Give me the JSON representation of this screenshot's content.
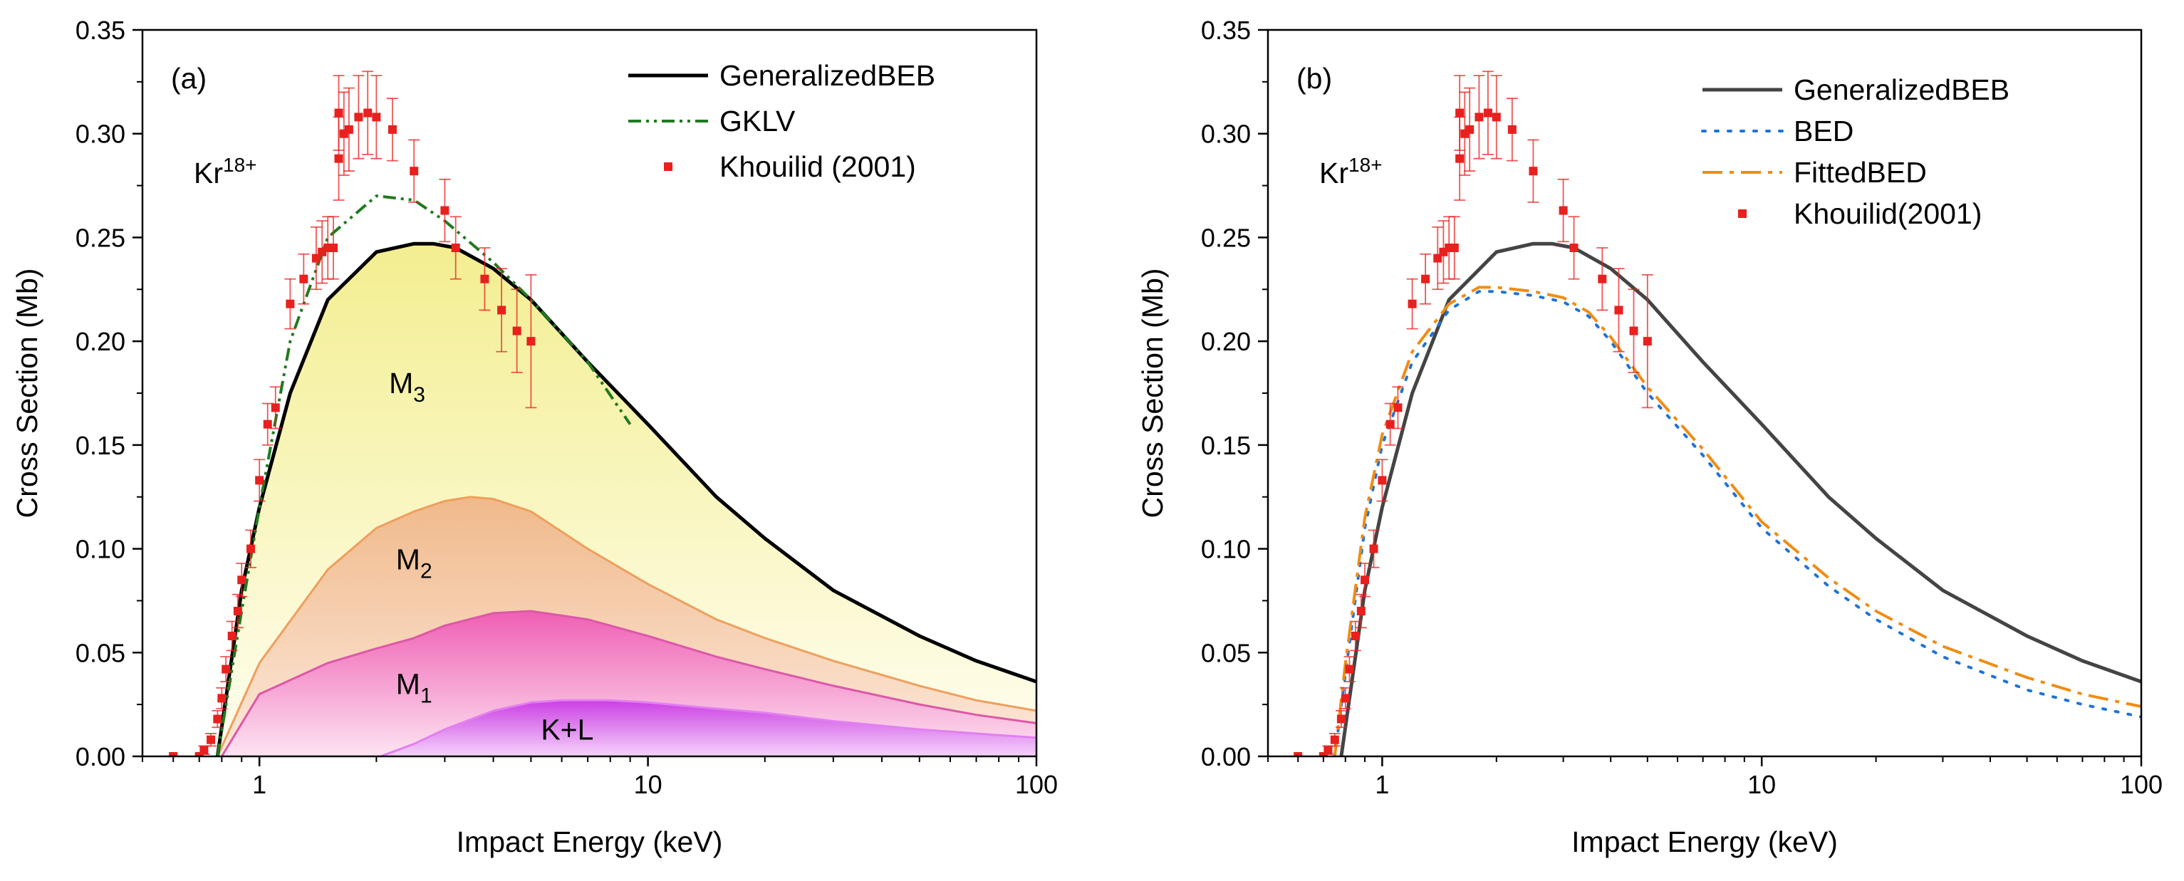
{
  "chart_data": [
    {
      "type": "line",
      "panel_label": "(a)",
      "ion_label": {
        "base": "Kr",
        "sup": "18+"
      },
      "xlabel": "Impact Energy (keV)",
      "ylabel": "Cross Section (Mb)",
      "xscale": "log",
      "xlim": [
        0.5,
        100
      ],
      "ylim": [
        0,
        0.35
      ],
      "xticks": [
        1,
        10,
        100
      ],
      "xtick_labels": [
        "1",
        "10",
        "100"
      ],
      "yticks": [
        0,
        0.05,
        0.1,
        0.15,
        0.2,
        0.25,
        0.3,
        0.35
      ],
      "ytick_labels": [
        "0.00",
        "0.05",
        "0.10",
        "0.15",
        "0.20",
        "0.25",
        "0.30",
        "0.35"
      ],
      "legend_position": "top-right",
      "series": [
        {
          "name": "GeneralizedBEB",
          "style": "solid",
          "color": "#000000",
          "x": [
            0.78,
            0.9,
            1.0,
            1.2,
            1.5,
            2.0,
            2.5,
            2.8,
            3.2,
            4.0,
            5.0,
            7.0,
            10,
            15,
            20,
            30,
            50,
            70,
            100
          ],
          "y": [
            0.0,
            0.08,
            0.12,
            0.175,
            0.22,
            0.243,
            0.247,
            0.247,
            0.245,
            0.235,
            0.22,
            0.19,
            0.16,
            0.125,
            0.105,
            0.08,
            0.058,
            0.046,
            0.036
          ]
        },
        {
          "name": "GKLV",
          "style": "dash-dot-dot",
          "color": "#1f7a1f",
          "x": [
            0.78,
            0.9,
            1.0,
            1.2,
            1.5,
            2.0,
            2.5,
            3.0,
            4.0,
            5.0,
            7.0,
            9.0
          ],
          "y": [
            0.0,
            0.07,
            0.12,
            0.2,
            0.25,
            0.27,
            0.268,
            0.258,
            0.238,
            0.22,
            0.19,
            0.16
          ]
        },
        {
          "name": "Khouilid (2001)",
          "style": "markers",
          "color": "#e8201e",
          "x": [
            0.6,
            0.7,
            0.72,
            0.75,
            0.78,
            0.8,
            0.82,
            0.85,
            0.88,
            0.9,
            0.95,
            1.0,
            1.05,
            1.1,
            1.2,
            1.3,
            1.4,
            1.45,
            1.5,
            1.55,
            1.6,
            1.6,
            1.65,
            1.7,
            1.8,
            1.9,
            2.0,
            2.2,
            2.5,
            3.0,
            3.2,
            3.8,
            4.2,
            4.6,
            5.0
          ],
          "y": [
            0.0,
            0.0,
            0.003,
            0.008,
            0.018,
            0.028,
            0.042,
            0.058,
            0.07,
            0.085,
            0.1,
            0.133,
            0.16,
            0.168,
            0.218,
            0.23,
            0.24,
            0.243,
            0.245,
            0.245,
            0.31,
            0.288,
            0.3,
            0.302,
            0.308,
            0.31,
            0.308,
            0.302,
            0.282,
            0.263,
            0.245,
            0.23,
            0.215,
            0.205,
            0.2
          ],
          "err": [
            0,
            0,
            0.002,
            0.003,
            0.004,
            0.005,
            0.006,
            0.007,
            0.008,
            0.008,
            0.009,
            0.01,
            0.01,
            0.01,
            0.012,
            0.012,
            0.015,
            0.015,
            0.015,
            0.015,
            0.018,
            0.02,
            0.02,
            0.02,
            0.02,
            0.02,
            0.02,
            0.015,
            0.015,
            0.015,
            0.015,
            0.015,
            0.02,
            0.02,
            0.032
          ]
        }
      ],
      "components": [
        {
          "label": "M",
          "sub": "3",
          "label_x": 2.4,
          "label_y": 0.175
        },
        {
          "label": "M",
          "sub": "2",
          "label_x": 2.5,
          "label_y": 0.09,
          "x": [
            0.78,
            1.0,
            1.5,
            2.0,
            2.5,
            3.0,
            3.5,
            4.0,
            5.0,
            7.0,
            10,
            15,
            20,
            30,
            50,
            70,
            100
          ],
          "y": [
            0.0,
            0.045,
            0.09,
            0.11,
            0.118,
            0.123,
            0.125,
            0.124,
            0.118,
            0.1,
            0.083,
            0.066,
            0.057,
            0.046,
            0.034,
            0.027,
            0.022
          ]
        },
        {
          "label": "M",
          "sub": "1",
          "label_x": 2.5,
          "label_y": 0.03,
          "x": [
            0.8,
            1.0,
            1.5,
            2.0,
            2.5,
            3.0,
            4.0,
            5.0,
            7.0,
            10,
            15,
            20,
            30,
            50,
            70,
            100
          ],
          "y": [
            0.0,
            0.03,
            0.045,
            0.052,
            0.057,
            0.063,
            0.069,
            0.07,
            0.066,
            0.058,
            0.048,
            0.042,
            0.034,
            0.025,
            0.02,
            0.016
          ]
        },
        {
          "label": "K+L",
          "sub": "",
          "label_x": 6.2,
          "label_y": 0.008,
          "x": [
            2.05,
            2.5,
            3.0,
            4.0,
            5.0,
            6.0,
            8.0,
            10,
            15,
            20,
            30,
            50,
            70,
            100
          ],
          "y": [
            0.0,
            0.006,
            0.013,
            0.022,
            0.026,
            0.027,
            0.027,
            0.026,
            0.023,
            0.021,
            0.017,
            0.013,
            0.011,
            0.009
          ]
        }
      ]
    },
    {
      "type": "line",
      "panel_label": "(b)",
      "ion_label": {
        "base": "Kr",
        "sup": "18+"
      },
      "xlabel": "Impact Energy (keV)",
      "ylabel": "Cross Section (Mb)",
      "xscale": "log",
      "xlim": [
        0.5,
        100
      ],
      "ylim": [
        0,
        0.35
      ],
      "xticks": [
        1,
        10,
        100
      ],
      "xtick_labels": [
        "1",
        "10",
        "100"
      ],
      "yticks": [
        0,
        0.05,
        0.1,
        0.15,
        0.2,
        0.25,
        0.3,
        0.35
      ],
      "ytick_labels": [
        "0.00",
        "0.05",
        "0.10",
        "0.15",
        "0.20",
        "0.25",
        "0.30",
        "0.35"
      ],
      "legend_position": "top-right",
      "series": [
        {
          "name": "GeneralizedBEB",
          "style": "solid",
          "color": "#444444",
          "x": [
            0.78,
            0.9,
            1.0,
            1.2,
            1.5,
            2.0,
            2.5,
            2.8,
            3.2,
            4.0,
            5.0,
            7.0,
            10,
            15,
            20,
            30,
            50,
            70,
            100
          ],
          "y": [
            0.0,
            0.08,
            0.12,
            0.175,
            0.22,
            0.243,
            0.247,
            0.247,
            0.245,
            0.235,
            0.22,
            0.19,
            0.16,
            0.125,
            0.105,
            0.08,
            0.058,
            0.046,
            0.036
          ]
        },
        {
          "name": "BED",
          "style": "dotted",
          "color": "#1e73d8",
          "x": [
            0.75,
            0.8,
            0.9,
            1.0,
            1.2,
            1.5,
            1.8,
            2.0,
            2.5,
            3.0,
            3.5,
            4.0,
            5.0,
            7.0,
            10,
            15,
            20,
            30,
            50,
            70,
            100
          ],
          "y": [
            0.0,
            0.04,
            0.11,
            0.15,
            0.19,
            0.215,
            0.224,
            0.224,
            0.222,
            0.219,
            0.212,
            0.2,
            0.175,
            0.145,
            0.11,
            0.082,
            0.066,
            0.048,
            0.032,
            0.025,
            0.019
          ]
        },
        {
          "name": "FittedBED",
          "style": "dash-dot",
          "color": "#f08c14",
          "x": [
            0.75,
            0.8,
            0.9,
            1.0,
            1.2,
            1.5,
            1.8,
            2.0,
            2.5,
            3.0,
            3.5,
            4.0,
            5.0,
            7.0,
            10,
            15,
            20,
            30,
            50,
            70,
            100
          ],
          "y": [
            0.0,
            0.045,
            0.115,
            0.155,
            0.195,
            0.218,
            0.226,
            0.226,
            0.224,
            0.221,
            0.214,
            0.202,
            0.178,
            0.148,
            0.113,
            0.086,
            0.07,
            0.053,
            0.038,
            0.03,
            0.024
          ]
        },
        {
          "name": "Khouilid(2001)",
          "style": "markers",
          "color": "#e8201e",
          "x": [
            0.6,
            0.7,
            0.72,
            0.75,
            0.78,
            0.8,
            0.82,
            0.85,
            0.88,
            0.9,
            0.95,
            1.0,
            1.05,
            1.1,
            1.2,
            1.3,
            1.4,
            1.45,
            1.5,
            1.55,
            1.6,
            1.6,
            1.65,
            1.7,
            1.8,
            1.9,
            2.0,
            2.2,
            2.5,
            3.0,
            3.2,
            3.8,
            4.2,
            4.6,
            5.0
          ],
          "y": [
            0.0,
            0.0,
            0.003,
            0.008,
            0.018,
            0.028,
            0.042,
            0.058,
            0.07,
            0.085,
            0.1,
            0.133,
            0.16,
            0.168,
            0.218,
            0.23,
            0.24,
            0.243,
            0.245,
            0.245,
            0.31,
            0.288,
            0.3,
            0.302,
            0.308,
            0.31,
            0.308,
            0.302,
            0.282,
            0.263,
            0.245,
            0.23,
            0.215,
            0.205,
            0.2
          ],
          "err": [
            0,
            0,
            0.002,
            0.003,
            0.004,
            0.005,
            0.006,
            0.007,
            0.008,
            0.008,
            0.009,
            0.01,
            0.01,
            0.01,
            0.012,
            0.012,
            0.015,
            0.015,
            0.015,
            0.015,
            0.018,
            0.02,
            0.02,
            0.02,
            0.02,
            0.02,
            0.02,
            0.015,
            0.015,
            0.015,
            0.015,
            0.015,
            0.02,
            0.02,
            0.032
          ]
        }
      ]
    }
  ]
}
